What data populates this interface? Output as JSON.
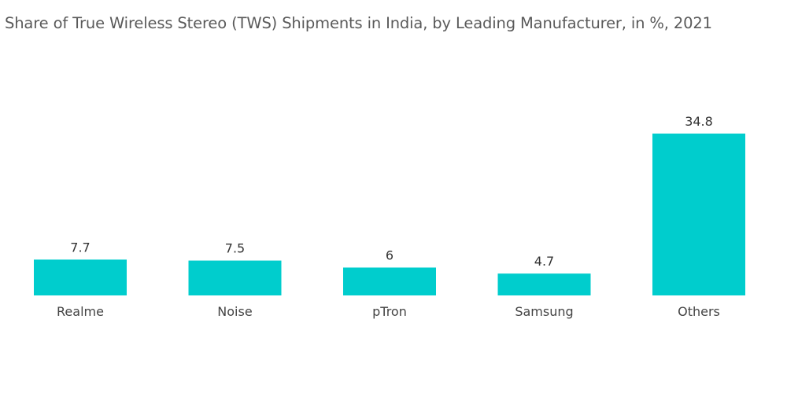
{
  "chart_data": {
    "type": "bar",
    "title": "Share of True Wireless Stereo (TWS) Shipments in India, by Leading Manufacturer, in %, 2021",
    "categories": [
      "Realme",
      "Noise",
      "pTron",
      "Samsung",
      "Others"
    ],
    "values": [
      7.7,
      7.5,
      6,
      4.7,
      34.8
    ],
    "value_labels": [
      "7.7",
      "7.5",
      "6",
      "4.7",
      "34.8"
    ],
    "xlabel": "",
    "ylabel": "",
    "ylim": [
      0,
      34.8
    ],
    "grid": false,
    "bar_color": "#00cdcd"
  }
}
